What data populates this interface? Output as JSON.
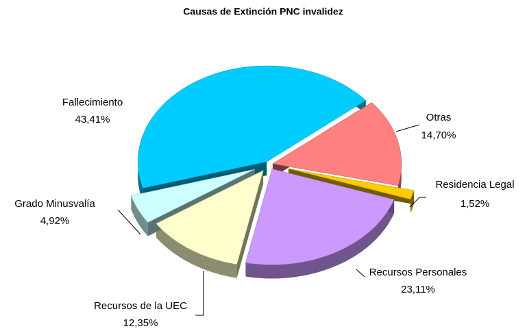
{
  "chart_data": {
    "type": "pie",
    "title": "Causas de Extinción PNC invalidez",
    "categories": [
      "Fallecimiento",
      "Otras",
      "Residencia Legal",
      "Recursos Personales",
      "Recursos de la UEC",
      "Grado Minusvalía"
    ],
    "values": [
      43.41,
      14.7,
      1.52,
      23.11,
      12.35,
      4.92
    ],
    "value_labels": [
      "43,41%",
      "14,70%",
      "1,52%",
      "23,11%",
      "12,35%",
      "4,92%"
    ],
    "colors": [
      "#00CCFF",
      "#FF8080",
      "#FFCC00",
      "#CC99FF",
      "#FFFFCC",
      "#CCFFFF"
    ]
  }
}
